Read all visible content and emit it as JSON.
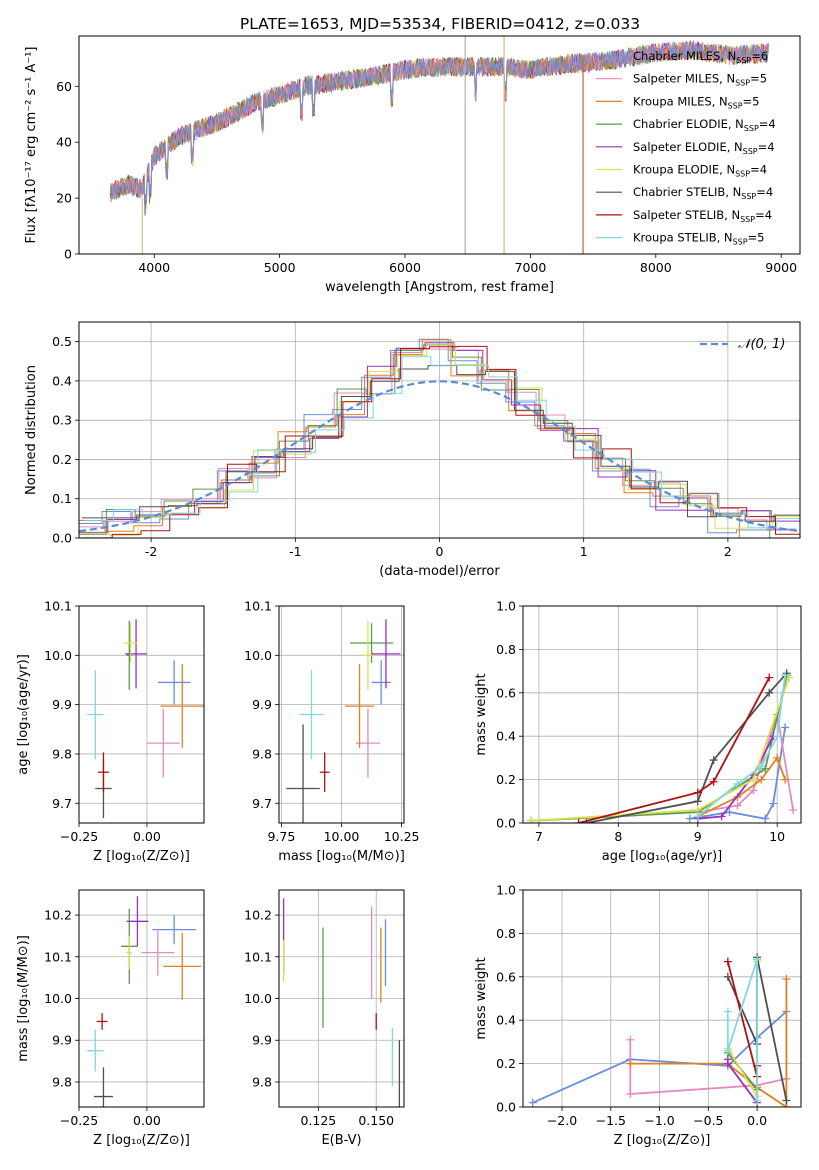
{
  "title": "PLATE=1653, MJD=53534, FIBERID=0412, z=0.033",
  "models": [
    {
      "name": "Chabrier MILES, N_SSP=6",
      "label_main": "Chabrier MILES, N",
      "label_sub": "SSP",
      "label_tail": "=6",
      "color": "#6a8fd8"
    },
    {
      "name": "Salpeter MILES, N_SSP=5",
      "label_main": "Salpeter MILES, N",
      "label_sub": "SSP",
      "label_tail": "=5",
      "color": "#e58ac0"
    },
    {
      "name": "Kroupa MILES, N_SSP=5",
      "label_main": "Kroupa MILES, N",
      "label_sub": "SSP",
      "label_tail": "=5",
      "color": "#e08020"
    },
    {
      "name": "Chabrier ELODIE, N_SSP=4",
      "label_main": "Chabrier ELODIE, N",
      "label_sub": "SSP",
      "label_tail": "=4",
      "color": "#5c9a4c"
    },
    {
      "name": "Salpeter ELODIE, N_SSP=4",
      "label_main": "Salpeter ELODIE, N",
      "label_sub": "SSP",
      "label_tail": "=4",
      "color": "#9a30c0"
    },
    {
      "name": "Kroupa ELODIE, N_SSP=4",
      "label_main": "Kroupa ELODIE, N",
      "label_sub": "SSP",
      "label_tail": "=4",
      "color": "#d8e050"
    },
    {
      "name": "Chabrier STELIB, N_SSP=4",
      "label_main": "Chabrier STELIB, N",
      "label_sub": "SSP",
      "label_tail": "=4",
      "color": "#505050"
    },
    {
      "name": "Salpeter STELIB, N_SSP=4",
      "label_main": "Salpeter STELIB, N",
      "label_sub": "SSP",
      "label_tail": "=4",
      "color": "#b01010"
    },
    {
      "name": "Kroupa STELIB, N_SSP=5",
      "label_main": "Kroupa STELIB, N",
      "label_sub": "SSP",
      "label_tail": "=5",
      "color": "#80d8e0"
    }
  ],
  "chart_data": [
    {
      "id": "spectrum",
      "type": "line",
      "xlabel": "wavelength [Angstrom, rest frame]",
      "ylabel": "Flux [fλ10⁻¹⁷ erg cm⁻² s⁻¹ A⁻¹]",
      "xlim": [
        3400,
        9150
      ],
      "ylim": [
        0,
        78
      ],
      "xticks": [
        4000,
        5000,
        6000,
        7000,
        8000,
        9000
      ],
      "yticks": [
        0,
        20,
        40,
        60
      ],
      "spectrum_envelope_x": [
        3650,
        3800,
        3900,
        4000,
        4200,
        4500,
        4800,
        5000,
        5200,
        5500,
        5800,
        6000,
        6300,
        6500,
        6800,
        7000,
        7300,
        7600,
        8000,
        8300,
        8600,
        8900
      ],
      "spectrum_envelope_y": [
        22,
        25,
        23,
        35,
        42,
        47,
        54,
        57,
        60,
        62,
        64,
        66,
        67,
        67,
        67,
        66,
        68,
        69,
        72,
        73,
        71,
        72
      ],
      "absorption_lines_x": [
        3934,
        3969,
        4102,
        4304,
        4861,
        5175,
        5270,
        5892,
        6563,
        6800
      ],
      "legend_location": "upper right",
      "grid": false
    },
    {
      "id": "residuals",
      "type": "area",
      "xlabel": "(data-model)/error",
      "ylabel": "Normed distribution",
      "xlim": [
        -2.5,
        2.5
      ],
      "ylim": [
        0,
        0.55
      ],
      "xticks": [
        -2,
        -1,
        0,
        1,
        2
      ],
      "yticks": [
        0,
        0.1,
        0.2,
        0.3,
        0.4,
        0.5
      ],
      "reference_label": "𝒩(0, 1)",
      "reference_color": "#5b8ad8",
      "hist_x": [
        -2.4,
        -2.2,
        -2.0,
        -1.8,
        -1.6,
        -1.4,
        -1.2,
        -1.0,
        -0.8,
        -0.6,
        -0.4,
        -0.2,
        0.0,
        0.2,
        0.4,
        0.6,
        0.8,
        1.0,
        1.2,
        1.4,
        1.6,
        1.8,
        2.0,
        2.2,
        2.4
      ],
      "hist_y": [
        0.025,
        0.035,
        0.055,
        0.08,
        0.11,
        0.15,
        0.19,
        0.24,
        0.29,
        0.34,
        0.4,
        0.45,
        0.47,
        0.45,
        0.41,
        0.35,
        0.29,
        0.24,
        0.19,
        0.15,
        0.11,
        0.08,
        0.05,
        0.035,
        0.025
      ],
      "grid": true,
      "legend_location": "upper right"
    },
    {
      "id": "age_vs_Z",
      "type": "scatter",
      "xlabel": "Z [log₁₀(Z/Z⊙)]",
      "ylabel": "age  [log₁₀(age/yr)]",
      "xlim": [
        -0.25,
        0.21
      ],
      "ylim": [
        9.66,
        10.1
      ],
      "xticks": [
        -0.25,
        0.0
      ],
      "xtick_labels": [
        "−0.25",
        "0.00"
      ],
      "yticks": [
        9.7,
        9.8,
        9.9,
        10.0,
        10.1
      ],
      "points": [
        {
          "x": 0.1,
          "y": 9.945,
          "xerr": 0.06,
          "yerr": 0.045
        },
        {
          "x": 0.06,
          "y": 9.822,
          "xerr": 0.06,
          "yerr": 0.07
        },
        {
          "x": 0.13,
          "y": 9.897,
          "xerr": 0.08,
          "yerr": 0.085
        },
        {
          "x": -0.065,
          "y": 10.0,
          "xerr": 0.01,
          "yerr": 0.07
        },
        {
          "x": -0.04,
          "y": 10.003,
          "xerr": 0.04,
          "yerr": 0.07
        },
        {
          "x": -0.06,
          "y": 10.025,
          "xerr": 0.025,
          "yerr": 0.04
        },
        {
          "x": -0.16,
          "y": 9.73,
          "xerr": 0.03,
          "yerr": 0.06
        },
        {
          "x": -0.16,
          "y": 9.763,
          "xerr": 0.02,
          "yerr": 0.04
        },
        {
          "x": -0.19,
          "y": 9.88,
          "xerr": 0.03,
          "yerr": 0.09
        }
      ],
      "grid": true
    },
    {
      "id": "age_vs_mass",
      "type": "scatter",
      "xlabel": "mass [log₁₀(M/M⊙)]",
      "ylabel": "",
      "xlim": [
        9.74,
        10.26
      ],
      "ylim": [
        9.66,
        10.1
      ],
      "xticks": [
        9.75,
        10.0,
        10.25
      ],
      "xtick_labels": [
        "9.75",
        "10.00",
        "10.25"
      ],
      "yticks": [
        9.7,
        9.8,
        9.9,
        10.0,
        10.1
      ],
      "points": [
        {
          "x": 10.165,
          "y": 9.945,
          "xerr": 0.04,
          "yerr": 0.045
        },
        {
          "x": 10.11,
          "y": 9.822,
          "xerr": 0.05,
          "yerr": 0.07
        },
        {
          "x": 10.075,
          "y": 9.897,
          "xerr": 0.06,
          "yerr": 0.085
        },
        {
          "x": 10.125,
          "y": 10.025,
          "xerr": 0.09,
          "yerr": 0.04
        },
        {
          "x": 10.185,
          "y": 10.003,
          "xerr": 0.06,
          "yerr": 0.07
        },
        {
          "x": 10.11,
          "y": 10.0,
          "xerr": 0.03,
          "yerr": 0.07
        },
        {
          "x": 9.84,
          "y": 9.73,
          "xerr": 0.07,
          "yerr": 0.13
        },
        {
          "x": 9.93,
          "y": 9.763,
          "xerr": 0.02,
          "yerr": 0.04
        },
        {
          "x": 9.875,
          "y": 9.88,
          "xerr": 0.05,
          "yerr": 0.09
        }
      ],
      "grid": true
    },
    {
      "id": "weight_vs_age",
      "type": "line",
      "xlabel": "age  [log₁₀(age/yr)]",
      "ylabel": "mass weight",
      "xlim": [
        6.8,
        10.3
      ],
      "ylim": [
        0,
        1.0
      ],
      "xticks": [
        7,
        8,
        9,
        10
      ],
      "yticks": [
        0,
        0.2,
        0.4,
        0.6,
        0.8,
        1.0
      ],
      "series": [
        {
          "x": [
            8.9,
            9.4,
            9.85,
            9.95,
            10.1
          ],
          "y": [
            0.02,
            0.05,
            0.02,
            0.09,
            0.44
          ]
        },
        {
          "x": [
            9.0,
            9.5,
            9.7,
            10.0,
            10.2
          ],
          "y": [
            0.05,
            0.08,
            0.15,
            0.5,
            0.06
          ]
        },
        {
          "x": [
            9.0,
            9.5,
            9.8,
            10.0,
            10.1
          ],
          "y": [
            0.03,
            0.12,
            0.2,
            0.3,
            0.2
          ]
        },
        {
          "x": [
            6.9,
            9.0,
            9.85,
            10.12
          ],
          "y": [
            0.01,
            0.05,
            0.25,
            0.68
          ]
        },
        {
          "x": [
            9.0,
            9.3,
            9.7,
            9.95
          ],
          "y": [
            0.02,
            0.03,
            0.22,
            0.4
          ]
        },
        {
          "x": [
            6.9,
            9.0,
            9.7,
            10.15
          ],
          "y": [
            0.01,
            0.06,
            0.2,
            0.67
          ]
        },
        {
          "x": [
            7.6,
            9.0,
            9.2,
            9.9,
            10.12
          ],
          "y": [
            0.0,
            0.1,
            0.29,
            0.6,
            0.69
          ]
        },
        {
          "x": [
            7.5,
            9.0,
            9.2,
            9.9
          ],
          "y": [
            0.0,
            0.14,
            0.19,
            0.67
          ]
        },
        {
          "x": [
            9.0,
            9.5,
            9.8,
            10.0,
            10.1
          ],
          "y": [
            0.03,
            0.18,
            0.26,
            0.4,
            0.68
          ]
        }
      ],
      "grid": true
    },
    {
      "id": "mass_vs_Z",
      "type": "scatter",
      "xlabel": "Z [log₁₀(Z/Z⊙)]",
      "ylabel": "mass [log₁₀(M/M⊙)]",
      "xlim": [
        -0.25,
        0.21
      ],
      "ylim": [
        9.74,
        10.26
      ],
      "xticks": [
        -0.25,
        0.0
      ],
      "xtick_labels": [
        "−0.25",
        "0.00"
      ],
      "yticks": [
        9.8,
        9.9,
        10.0,
        10.1,
        10.2
      ],
      "points": [
        {
          "x": 0.1,
          "y": 10.165,
          "xerr": 0.08,
          "yerr": 0.035
        },
        {
          "x": 0.04,
          "y": 10.11,
          "xerr": 0.06,
          "yerr": 0.055
        },
        {
          "x": 0.13,
          "y": 10.077,
          "xerr": 0.07,
          "yerr": 0.08
        },
        {
          "x": -0.065,
          "y": 10.125,
          "xerr": 0.03,
          "yerr": 0.09
        },
        {
          "x": -0.035,
          "y": 10.185,
          "xerr": 0.04,
          "yerr": 0.06
        },
        {
          "x": -0.065,
          "y": 10.11,
          "xerr": 0.01,
          "yerr": 0.04
        },
        {
          "x": -0.16,
          "y": 9.765,
          "xerr": 0.035,
          "yerr": 0.07
        },
        {
          "x": -0.165,
          "y": 9.945,
          "xerr": 0.02,
          "yerr": 0.02
        },
        {
          "x": -0.19,
          "y": 9.875,
          "xerr": 0.03,
          "yerr": 0.05
        }
      ],
      "grid": true
    },
    {
      "id": "mass_vs_EBV",
      "type": "scatter",
      "xlabel": "E(B-V)",
      "ylabel": "",
      "xlim": [
        0.108,
        0.162
      ],
      "ylim": [
        9.74,
        10.26
      ],
      "xticks": [
        0.125,
        0.15
      ],
      "xtick_labels": [
        "0.125",
        "0.150"
      ],
      "yticks": [
        9.8,
        9.9,
        10.0,
        10.1,
        10.2
      ],
      "points": [
        {
          "x": 0.154,
          "y": 10.11,
          "yerr": 0.08
        },
        {
          "x": 0.148,
          "y": 10.11,
          "yerr": 0.11
        },
        {
          "x": 0.152,
          "y": 10.08,
          "yerr": 0.09
        },
        {
          "x": 0.127,
          "y": 10.05,
          "yerr": 0.12
        },
        {
          "x": 0.11,
          "y": 10.15,
          "yerr": 0.09
        },
        {
          "x": 0.11,
          "y": 10.09,
          "yerr": 0.05
        },
        {
          "x": 0.16,
          "y": 9.76,
          "yerr": 0.14
        },
        {
          "x": 0.15,
          "y": 9.945,
          "yerr": 0.02
        },
        {
          "x": 0.157,
          "y": 9.86,
          "yerr": 0.07
        }
      ],
      "grid": true
    },
    {
      "id": "weight_vs_Z",
      "type": "line",
      "xlabel": "Z [log₁₀(Z/Z⊙)]",
      "ylabel": "mass weight",
      "xlim": [
        -2.4,
        0.45
      ],
      "ylim": [
        0,
        1.0
      ],
      "xticks": [
        -2.0,
        -1.5,
        -1.0,
        -0.5,
        0.0
      ],
      "xtick_labels": [
        "−2.0",
        "−1.5",
        "−1.0",
        "−0.5",
        "0.0"
      ],
      "yticks": [
        0,
        0.2,
        0.4,
        0.6,
        0.8,
        1.0
      ],
      "series": [
        {
          "x": [
            -2.3,
            -1.3,
            -0.3,
            0.0,
            0.3
          ],
          "y": [
            0.02,
            0.22,
            0.19,
            0.32,
            0.44
          ]
        },
        {
          "x": [
            -1.3,
            -1.3,
            0.0,
            0.3
          ],
          "y": [
            0.31,
            0.06,
            0.1,
            0.13
          ]
        },
        {
          "x": [
            -1.3,
            -0.3,
            0.0,
            0.3,
            0.3
          ],
          "y": [
            0.2,
            0.2,
            0.09,
            0.0,
            0.59
          ]
        },
        {
          "x": [
            -0.3,
            0.0,
            0.0
          ],
          "y": [
            0.25,
            0.08,
            0.68
          ]
        },
        {
          "x": [
            -0.3,
            -0.3,
            0.0
          ],
          "y": [
            0.22,
            0.2,
            0.02
          ]
        },
        {
          "x": [
            -0.3,
            0.0,
            0.0
          ],
          "y": [
            0.27,
            0.05,
            0.67
          ]
        },
        {
          "x": [
            -0.3,
            0.0,
            0.0,
            0.3
          ],
          "y": [
            0.6,
            0.29,
            0.69,
            0.03
          ]
        },
        {
          "x": [
            -0.3,
            0.0,
            0.0
          ],
          "y": [
            0.67,
            0.14,
            0.19
          ]
        },
        {
          "x": [
            -0.3,
            -0.3,
            0.0,
            0.0
          ],
          "y": [
            0.44,
            0.26,
            0.68,
            0.03
          ]
        }
      ],
      "grid": true
    }
  ]
}
